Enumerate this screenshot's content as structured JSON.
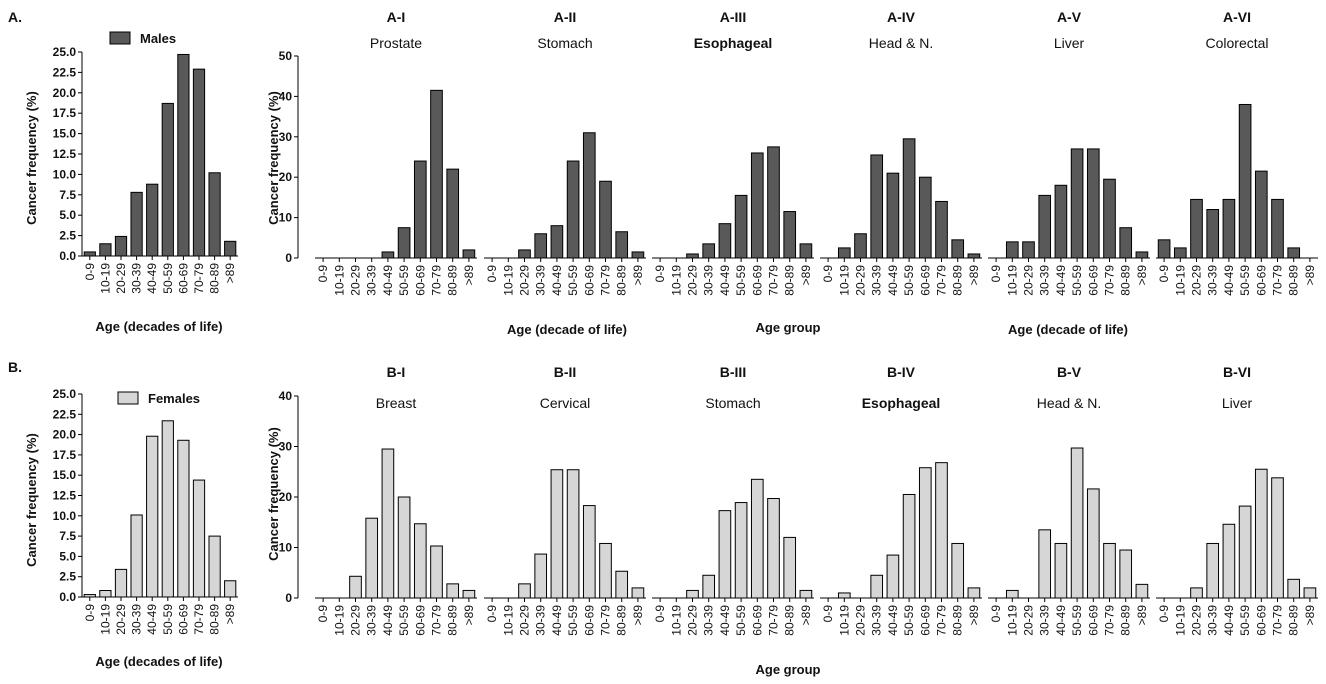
{
  "panel_labels": {
    "a": "A.",
    "b": "B."
  },
  "axis_text": {
    "y_label": "Cancer frequency (%)",
    "x_overview": "Age (decades of life)",
    "x_row_a": "Age (decade of life)",
    "x_group": "Age group"
  },
  "legend": {
    "males": "Males",
    "females": "Females"
  },
  "colors": {
    "males_fill": "#595959",
    "females_fill": "#d6d6d6",
    "stroke": "#000000"
  },
  "categories": [
    "0-9",
    "10-19",
    "20-29",
    "30-39",
    "40-49",
    "50-59",
    "60-69",
    "70-79",
    "80-89",
    ">89"
  ],
  "chart_data": [
    {
      "id": "A-overview",
      "type": "bar",
      "series": [
        {
          "name": "Males",
          "values": [
            0.5,
            1.5,
            2.4,
            7.8,
            8.8,
            18.7,
            24.7,
            22.9,
            10.2,
            1.8
          ]
        }
      ],
      "ylim": [
        0,
        25
      ],
      "yticks": [
        "0.0",
        "2.5",
        "5.0",
        "7.5",
        "10.0",
        "12.5",
        "15.0",
        "17.5",
        "20.0",
        "22.5",
        "25.0"
      ]
    },
    {
      "id": "B-overview",
      "type": "bar",
      "series": [
        {
          "name": "Females",
          "values": [
            0.3,
            0.8,
            3.4,
            10.1,
            19.8,
            21.7,
            19.3,
            14.4,
            7.5,
            2.0
          ]
        }
      ],
      "ylim": [
        0,
        25
      ],
      "yticks": [
        "0.0",
        "2.5",
        "5.0",
        "7.5",
        "10.0",
        "12.5",
        "15.0",
        "17.5",
        "20.0",
        "22.5",
        "25.0"
      ]
    },
    {
      "id": "A-row",
      "type": "bar",
      "ylim": [
        0,
        50
      ],
      "yticks": [
        "0",
        "10",
        "20",
        "30",
        "40",
        "50"
      ],
      "subplots": [
        {
          "code": "A-I",
          "title": "Prostate",
          "values": [
            0,
            0,
            0,
            0,
            1.5,
            7.5,
            24,
            41.5,
            22,
            2
          ]
        },
        {
          "code": "A-II",
          "title": "Stomach",
          "values": [
            0,
            0,
            2,
            6,
            8,
            24,
            31,
            19,
            6.5,
            1.5
          ]
        },
        {
          "code": "A-III",
          "title": "Esophageal",
          "values": [
            0,
            0,
            1,
            3.5,
            8.5,
            15.5,
            26,
            27.5,
            11.5,
            3.5
          ]
        },
        {
          "code": "A-IV",
          "title": "Head & N.",
          "values": [
            0,
            2.5,
            6,
            25.5,
            21,
            29.5,
            20,
            14,
            4.5,
            1
          ]
        },
        {
          "code": "A-V",
          "title": "Liver",
          "values": [
            0,
            4,
            4,
            15.5,
            18,
            27,
            27,
            19.5,
            7.5,
            1.5
          ]
        },
        {
          "code": "A-VI",
          "title": "Colorectal",
          "values": [
            4.5,
            2.5,
            14.5,
            12,
            14.5,
            38,
            21.5,
            14.5,
            2.5,
            0
          ]
        }
      ]
    },
    {
      "id": "B-row",
      "type": "bar",
      "ylim": [
        0,
        40
      ],
      "yticks": [
        "0",
        "10",
        "20",
        "30",
        "40"
      ],
      "subplots": [
        {
          "code": "B-I",
          "title": "Breast",
          "values": [
            0,
            0,
            4.3,
            15.8,
            29.5,
            20,
            14.7,
            10.3,
            2.8,
            1.5
          ]
        },
        {
          "code": "B-II",
          "title": "Cervical",
          "values": [
            0,
            0,
            2.8,
            8.7,
            25.4,
            25.4,
            18.3,
            10.8,
            5.3,
            2
          ]
        },
        {
          "code": "B-III",
          "title": "Stomach",
          "values": [
            0,
            0,
            1.5,
            4.5,
            17.3,
            18.9,
            23.5,
            19.7,
            12,
            1.5
          ]
        },
        {
          "code": "B-IV",
          "title": "Esophageal",
          "values": [
            0,
            1,
            0,
            4.5,
            8.5,
            20.5,
            25.8,
            26.8,
            10.8,
            2
          ]
        },
        {
          "code": "B-V",
          "title": "Head & N.",
          "values": [
            0,
            1.5,
            0,
            13.5,
            10.8,
            29.7,
            21.6,
            10.8,
            9.5,
            2.7
          ]
        },
        {
          "code": "B-VI",
          "title": "Liver",
          "values": [
            0,
            0,
            2,
            10.8,
            14.6,
            18.2,
            25.5,
            23.8,
            3.7,
            2
          ]
        }
      ]
    }
  ]
}
